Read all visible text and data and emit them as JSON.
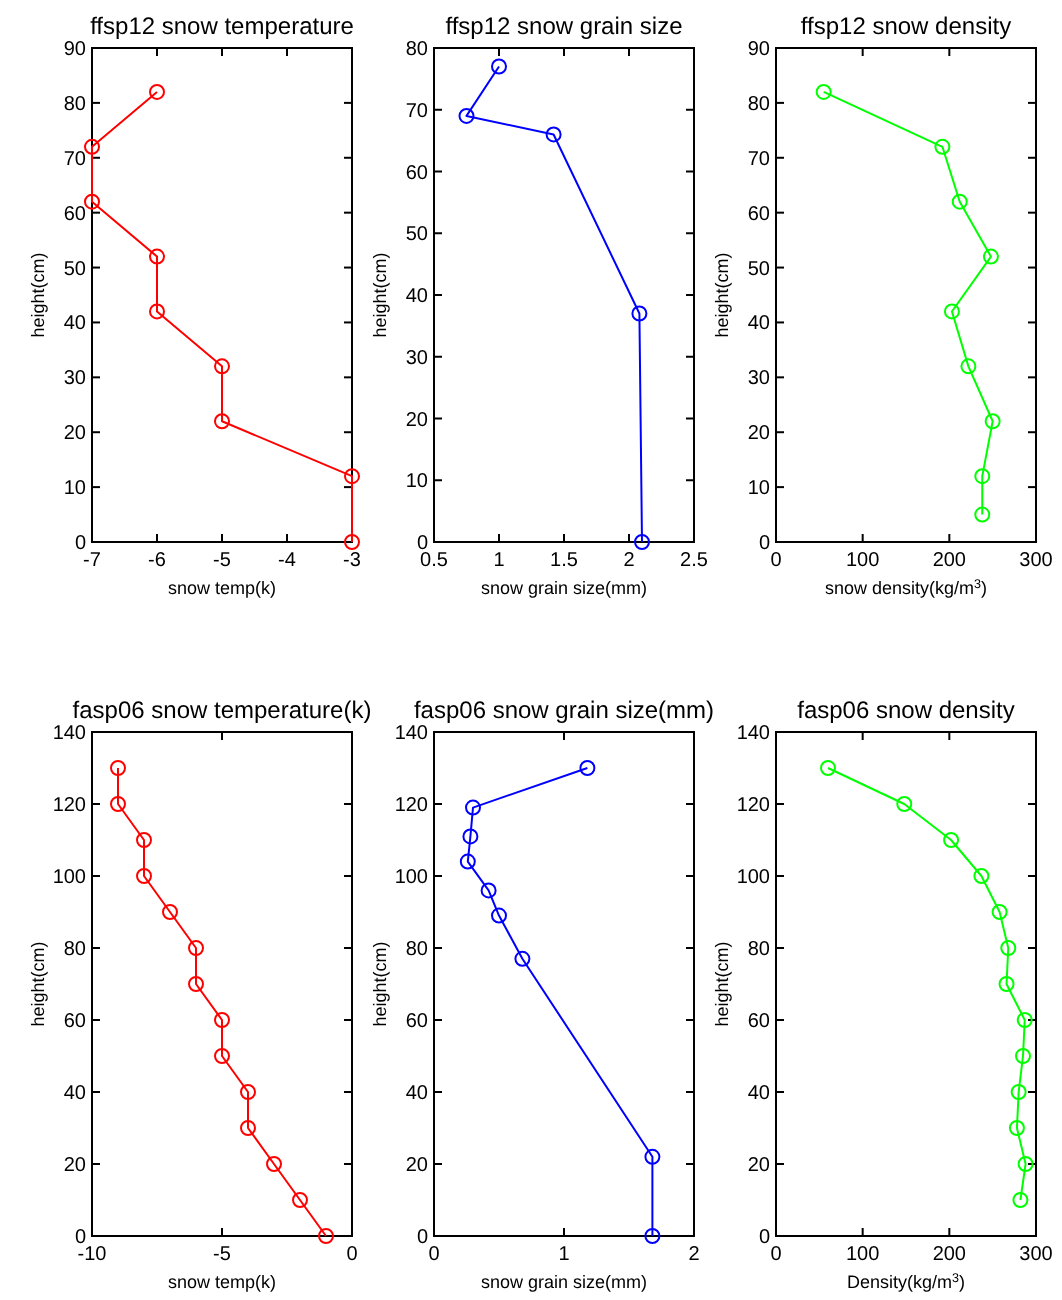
{
  "chart_data": [
    {
      "type": "line",
      "title": "ffsp12 snow temperature",
      "xlabel": "snow temp(k)",
      "ylabel": "height(cm)",
      "xlim": [
        -7,
        -3
      ],
      "xticks": [
        -7,
        -6,
        -5,
        -4,
        -3
      ],
      "ylim": [
        0,
        90
      ],
      "yticks": [
        0,
        10,
        20,
        30,
        40,
        50,
        60,
        70,
        80,
        90
      ],
      "marker": "circle",
      "series": [
        {
          "color": "#ff0000",
          "x": [
            -6,
            -7,
            -7,
            -6,
            -6,
            -5,
            -5,
            -3,
            -3
          ],
          "values": [
            82,
            72,
            62,
            52,
            42,
            32,
            22,
            12,
            0
          ]
        }
      ]
    },
    {
      "type": "line",
      "title": "ffsp12 snow grain size",
      "xlabel": "snow grain size(mm)",
      "ylabel": "height(cm)",
      "xlim": [
        0.5,
        2.5
      ],
      "xticks": [
        0.5,
        1,
        1.5,
        2,
        2.5
      ],
      "ylim": [
        0,
        80
      ],
      "yticks": [
        0,
        10,
        20,
        30,
        40,
        50,
        60,
        70,
        80
      ],
      "marker": "circle",
      "series": [
        {
          "color": "#0000ff",
          "x": [
            1.0,
            0.75,
            1.42,
            2.08,
            2.1
          ],
          "values": [
            77,
            69,
            66,
            37,
            0
          ]
        }
      ]
    },
    {
      "type": "line",
      "title": "ffsp12 snow density",
      "xlabel": "snow density(kg/m$^{3}$)",
      "ylabel": "height(cm)",
      "xlim": [
        0,
        300
      ],
      "xticks": [
        0,
        100,
        200,
        300
      ],
      "ylim": [
        0,
        90
      ],
      "yticks": [
        0,
        10,
        20,
        30,
        40,
        50,
        60,
        70,
        80,
        90
      ],
      "marker": "circle",
      "series": [
        {
          "color": "#00ff00",
          "x": [
            55,
            192,
            212,
            248,
            203,
            222,
            250,
            238,
            238
          ],
          "values": [
            82,
            72,
            62,
            52,
            42,
            32,
            22,
            12,
            5
          ]
        }
      ]
    },
    {
      "type": "line",
      "title": "fasp06 snow temperature(k)",
      "xlabel": "snow temp(k)",
      "ylabel": "height(cm)",
      "xlim": [
        -10,
        0
      ],
      "xticks": [
        -10,
        -5,
        0
      ],
      "ylim": [
        0,
        140
      ],
      "yticks": [
        0,
        20,
        40,
        60,
        80,
        100,
        120,
        140
      ],
      "marker": "circle",
      "series": [
        {
          "color": "#ff0000",
          "x": [
            -9,
            -9,
            -8,
            -8,
            -7,
            -6,
            -6,
            -5,
            -5,
            -4,
            -4,
            -3,
            -2,
            -1
          ],
          "values": [
            130,
            120,
            110,
            100,
            90,
            80,
            70,
            60,
            50,
            40,
            30,
            20,
            10,
            0
          ]
        }
      ]
    },
    {
      "type": "line",
      "title": "fasp06 snow grain size(mm)",
      "xlabel": "snow grain size(mm)",
      "ylabel": "height(cm)",
      "xlim": [
        0,
        2
      ],
      "xticks": [
        0,
        1,
        2
      ],
      "ylim": [
        0,
        140
      ],
      "yticks": [
        0,
        20,
        40,
        60,
        80,
        100,
        120,
        140
      ],
      "marker": "circle",
      "series": [
        {
          "color": "#0000ff",
          "x": [
            1.18,
            0.3,
            0.28,
            0.26,
            0.42,
            0.5,
            0.68,
            1.68,
            1.68
          ],
          "values": [
            130,
            119,
            111,
            104,
            96,
            89,
            77,
            22,
            0
          ]
        }
      ]
    },
    {
      "type": "line",
      "title": "fasp06 snow density",
      "xlabel": "Density(kg/m$^{3}$)",
      "ylabel": "height(cm)",
      "xlim": [
        0,
        300
      ],
      "xticks": [
        0,
        100,
        200,
        300
      ],
      "ylim": [
        0,
        140
      ],
      "yticks": [
        0,
        20,
        40,
        60,
        80,
        100,
        120,
        140
      ],
      "marker": "circle",
      "series": [
        {
          "color": "#00ff00",
          "x": [
            60,
            148,
            202,
            237,
            258,
            268,
            266,
            287,
            285,
            280,
            278,
            288,
            282
          ],
          "values": [
            130,
            120,
            110,
            100,
            90,
            80,
            70,
            60,
            50,
            40,
            30,
            20,
            10
          ]
        }
      ]
    }
  ]
}
